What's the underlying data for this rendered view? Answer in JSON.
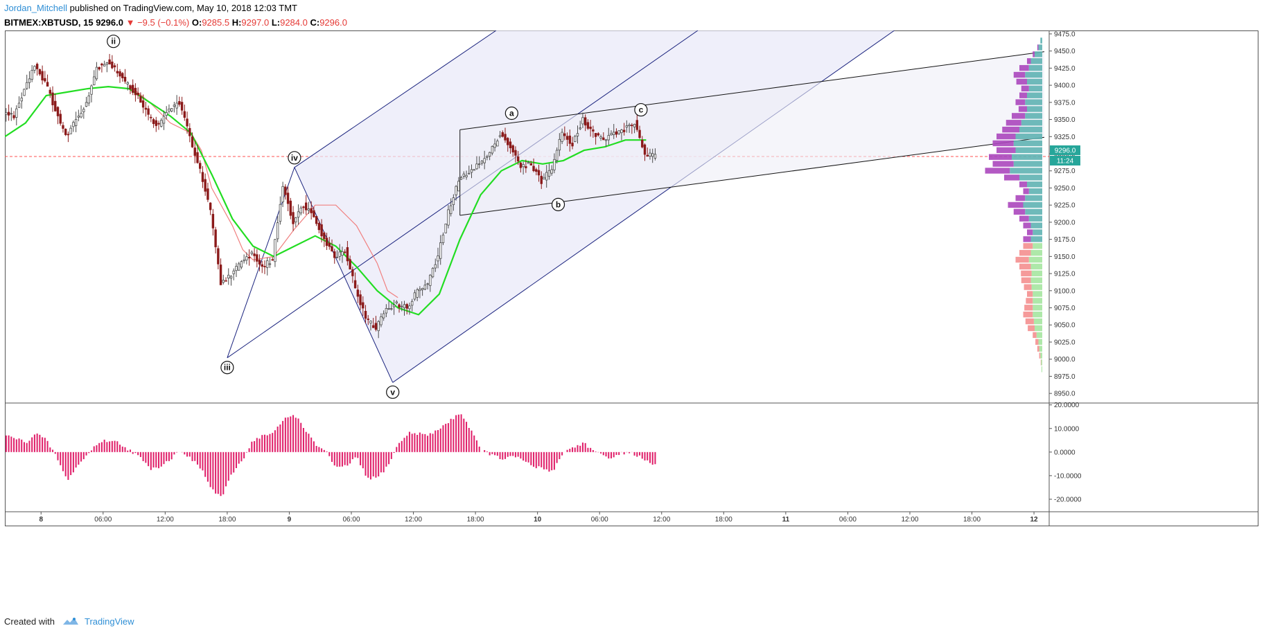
{
  "header": {
    "author": "Jordan_Mitchell",
    "published_text": "published on TradingView.com, May 10, 2018 12:03 TMT",
    "symbol": "BITMEX:XBTUSD, 15",
    "last": "9296.0",
    "change": "▼ −9.5 (−0.1%)",
    "o_label": "O:",
    "o_value": "9285.5",
    "h_label": "H:",
    "h_value": "9297.0",
    "l_label": "L:",
    "l_value": "9284.0",
    "c_label": "C:",
    "c_value": "9296.0"
  },
  "footer": {
    "created_with": "Created with",
    "brand": "TradingView"
  },
  "colors": {
    "bull": "#4a4a4a",
    "bear": "#8b1a1a",
    "ema_fast": "#22dd22",
    "ema_slow": "#f08080",
    "channel": "#1a237e",
    "channel_fill": "#e8e8f8",
    "osc": "#e0206a",
    "price_line": "#ff5252",
    "price_tag": "#26a69a"
  },
  "chart_data": {
    "type": "candlestick",
    "interval": "15",
    "price_axis": {
      "min": 8937,
      "max": 9480,
      "ticks": [
        "9475.0",
        "9450.0",
        "9425.0",
        "9400.0",
        "9375.0",
        "9350.0",
        "9325.0",
        "9300.0",
        "9275.0",
        "9250.0",
        "9225.0",
        "9200.0",
        "9175.0",
        "9150.0",
        "9125.0",
        "9100.0",
        "9075.0",
        "9050.0",
        "9025.0",
        "9000.0",
        "8975.0",
        "8950.0"
      ]
    },
    "last_price": {
      "value": 9296,
      "label": "9296.0",
      "countdown": "11:24"
    },
    "time_axis": {
      "ticks": [
        {
          "label": "8",
          "t": 3.5
        },
        {
          "label": "06:00",
          "t": 9.5
        },
        {
          "label": "12:00",
          "t": 15.5
        },
        {
          "label": "18:00",
          "t": 21.5
        },
        {
          "label": "9",
          "t": 27.5
        },
        {
          "label": "06:00",
          "t": 33.5
        },
        {
          "label": "12:00",
          "t": 39.5
        },
        {
          "label": "18:00",
          "t": 45.5
        },
        {
          "label": "10",
          "t": 51.5
        },
        {
          "label": "06:00",
          "t": 57.5
        },
        {
          "label": "12:00",
          "t": 63.5
        },
        {
          "label": "18:00",
          "t": 69.5
        },
        {
          "label": "11",
          "t": 75.5
        },
        {
          "label": "06:00",
          "t": 81.5
        },
        {
          "label": "12:00",
          "t": 87.5
        },
        {
          "label": "18:00",
          "t": 93.5
        },
        {
          "label": "12",
          "t": 99.5
        }
      ],
      "max_hours": 100.5
    },
    "price_path": [
      [
        0,
        9360
      ],
      [
        1,
        9355
      ],
      [
        2,
        9395
      ],
      [
        3,
        9430
      ],
      [
        4,
        9405
      ],
      [
        5,
        9365
      ],
      [
        6,
        9325
      ],
      [
        7,
        9350
      ],
      [
        8,
        9375
      ],
      [
        9,
        9425
      ],
      [
        10,
        9435
      ],
      [
        11,
        9420
      ],
      [
        12,
        9400
      ],
      [
        13,
        9385
      ],
      [
        14,
        9355
      ],
      [
        15,
        9340
      ],
      [
        16,
        9365
      ],
      [
        17,
        9375
      ],
      [
        18,
        9325
      ],
      [
        19,
        9275
      ],
      [
        20,
        9215
      ],
      [
        21,
        9110
      ],
      [
        22,
        9125
      ],
      [
        23,
        9140
      ],
      [
        24,
        9155
      ],
      [
        25,
        9135
      ],
      [
        26,
        9145
      ],
      [
        27,
        9255
      ],
      [
        28,
        9200
      ],
      [
        29,
        9225
      ],
      [
        30,
        9210
      ],
      [
        31,
        9175
      ],
      [
        32,
        9150
      ],
      [
        33,
        9160
      ],
      [
        34,
        9105
      ],
      [
        35,
        9060
      ],
      [
        36,
        9045
      ],
      [
        37,
        9075
      ],
      [
        38,
        9080
      ],
      [
        39,
        9075
      ],
      [
        40,
        9100
      ],
      [
        41,
        9110
      ],
      [
        42,
        9150
      ],
      [
        43,
        9215
      ],
      [
        44,
        9260
      ],
      [
        45,
        9275
      ],
      [
        46,
        9285
      ],
      [
        47,
        9300
      ],
      [
        48,
        9330
      ],
      [
        49,
        9310
      ],
      [
        50,
        9280
      ],
      [
        51,
        9285
      ],
      [
        52,
        9260
      ],
      [
        53,
        9280
      ],
      [
        54,
        9330
      ],
      [
        55,
        9315
      ],
      [
        56,
        9350
      ],
      [
        57,
        9330
      ],
      [
        58,
        9320
      ],
      [
        59,
        9330
      ],
      [
        60,
        9335
      ],
      [
        61,
        9345
      ],
      [
        62,
        9300
      ],
      [
        63,
        9296
      ]
    ],
    "ema_fast_path": [
      [
        0,
        9325
      ],
      [
        2,
        9345
      ],
      [
        4,
        9385
      ],
      [
        6,
        9390
      ],
      [
        8,
        9395
      ],
      [
        10,
        9398
      ],
      [
        12,
        9395
      ],
      [
        14,
        9375
      ],
      [
        16,
        9355
      ],
      [
        18,
        9330
      ],
      [
        20,
        9270
      ],
      [
        22,
        9205
      ],
      [
        24,
        9165
      ],
      [
        26,
        9150
      ],
      [
        28,
        9165
      ],
      [
        30,
        9180
      ],
      [
        32,
        9165
      ],
      [
        34,
        9135
      ],
      [
        36,
        9100
      ],
      [
        38,
        9075
      ],
      [
        40,
        9065
      ],
      [
        42,
        9095
      ],
      [
        44,
        9175
      ],
      [
        46,
        9240
      ],
      [
        48,
        9275
      ],
      [
        50,
        9290
      ],
      [
        52,
        9285
      ],
      [
        54,
        9290
      ],
      [
        56,
        9305
      ],
      [
        58,
        9310
      ],
      [
        60,
        9320
      ],
      [
        62,
        9320
      ]
    ],
    "ema_slow_path": [
      [
        12,
        9400
      ],
      [
        14,
        9375
      ],
      [
        16,
        9345
      ],
      [
        18,
        9330
      ],
      [
        19,
        9305
      ],
      [
        20,
        9250
      ],
      [
        22,
        9195
      ],
      [
        23,
        9160
      ],
      [
        24,
        9145
      ],
      [
        26,
        9150
      ],
      [
        28,
        9190
      ],
      [
        30,
        9225
      ],
      [
        32,
        9225
      ],
      [
        34,
        9195
      ],
      [
        36,
        9140
      ],
      [
        37,
        9100
      ],
      [
        38,
        9090
      ]
    ],
    "wave_labels": [
      {
        "label": "ii",
        "t": 10.5,
        "price": 9450,
        "pos": "above"
      },
      {
        "label": "iii",
        "t": 21.5,
        "price": 9002,
        "pos": "below"
      },
      {
        "label": "iv",
        "t": 28,
        "price": 9280,
        "pos": "above"
      },
      {
        "label": "v",
        "t": 37.5,
        "price": 8966,
        "pos": "below"
      },
      {
        "label": "a",
        "t": 49,
        "price": 9345,
        "pos": "above"
      },
      {
        "label": "b",
        "t": 53.5,
        "price": 9240,
        "pos": "below"
      },
      {
        "label": "c",
        "t": 61.5,
        "price": 9350,
        "pos": "above"
      }
    ],
    "pitchfork": {
      "pivots": [
        {
          "t": 21.5,
          "price": 9002
        },
        {
          "t": 28,
          "price": 9280
        },
        {
          "t": 37.5,
          "price": 8966
        }
      ],
      "upper": [
        {
          "t": 28,
          "price": 9280
        },
        {
          "t": 47.5,
          "price": 9480
        }
      ],
      "median": [
        {
          "t": 21.5,
          "price": 9002
        },
        {
          "t": 67,
          "price": 9480
        }
      ],
      "lower": [
        {
          "t": 37.5,
          "price": 8966
        },
        {
          "t": 86,
          "price": 9480
        }
      ]
    },
    "abc_channel": {
      "upper": [
        {
          "t": 44,
          "price": 9335
        },
        {
          "t": 100.5,
          "price": 9449
        }
      ],
      "lower": [
        {
          "t": 44,
          "price": 9210
        },
        {
          "t": 100.5,
          "price": 9324
        }
      ],
      "vertical": [
        {
          "t": 44,
          "price": 9210
        },
        {
          "t": 44,
          "price": 9335
        }
      ]
    },
    "oscillator": {
      "min": -25,
      "max": 20.5,
      "ticks": [
        "20.0000",
        "10.0000",
        "0.0000",
        "-10.0000",
        "-20.0000"
      ],
      "path": [
        [
          0,
          7
        ],
        [
          1,
          6
        ],
        [
          2,
          4
        ],
        [
          3,
          8
        ],
        [
          4,
          5
        ],
        [
          5,
          -2
        ],
        [
          6,
          -12
        ],
        [
          7,
          -6
        ],
        [
          8,
          -1
        ],
        [
          9,
          4
        ],
        [
          10,
          5
        ],
        [
          11,
          4
        ],
        [
          12,
          1
        ],
        [
          13,
          -2
        ],
        [
          14,
          -7
        ],
        [
          15,
          -6
        ],
        [
          16,
          -3
        ],
        [
          17,
          1
        ],
        [
          18,
          -3
        ],
        [
          19,
          -7
        ],
        [
          20,
          -16
        ],
        [
          21,
          -19
        ],
        [
          22,
          -9
        ],
        [
          23,
          -3
        ],
        [
          24,
          5
        ],
        [
          25,
          7
        ],
        [
          26,
          8
        ],
        [
          27,
          14
        ],
        [
          28,
          16
        ],
        [
          29,
          10
        ],
        [
          30,
          3
        ],
        [
          31,
          1
        ],
        [
          32,
          -7
        ],
        [
          33,
          -6
        ],
        [
          34,
          -2
        ],
        [
          35,
          -11
        ],
        [
          36,
          -11
        ],
        [
          37,
          -6
        ],
        [
          38,
          3
        ],
        [
          39,
          8
        ],
        [
          40,
          8
        ],
        [
          41,
          7
        ],
        [
          42,
          10
        ],
        [
          43,
          13
        ],
        [
          44,
          17
        ],
        [
          45,
          10
        ],
        [
          46,
          1
        ],
        [
          47,
          -1
        ],
        [
          48,
          -3
        ],
        [
          49,
          -2
        ],
        [
          50,
          -3
        ],
        [
          51,
          -6
        ],
        [
          52,
          -7
        ],
        [
          53,
          -8
        ],
        [
          54,
          0
        ],
        [
          55,
          2
        ],
        [
          56,
          4
        ],
        [
          57,
          0
        ],
        [
          58,
          -2
        ],
        [
          59,
          -2
        ],
        [
          60,
          0
        ],
        [
          61,
          -1
        ],
        [
          62,
          -4
        ],
        [
          63,
          -6
        ]
      ]
    },
    "volume_profile": [
      [
        9465,
        0.0,
        0.05
      ],
      [
        9455,
        0.03,
        0.1
      ],
      [
        9445,
        0.05,
        0.2
      ],
      [
        9435,
        0.1,
        0.3
      ],
      [
        9425,
        0.25,
        0.35
      ],
      [
        9415,
        0.3,
        0.45
      ],
      [
        9405,
        0.28,
        0.4
      ],
      [
        9395,
        0.2,
        0.35
      ],
      [
        9385,
        0.2,
        0.4
      ],
      [
        9375,
        0.25,
        0.45
      ],
      [
        9365,
        0.22,
        0.4
      ],
      [
        9355,
        0.35,
        0.45
      ],
      [
        9345,
        0.4,
        0.55
      ],
      [
        9335,
        0.45,
        0.6
      ],
      [
        9325,
        0.5,
        0.7
      ],
      [
        9315,
        0.55,
        0.75
      ],
      [
        9305,
        0.5,
        0.7
      ],
      [
        9295,
        0.6,
        0.8
      ],
      [
        9285,
        0.55,
        0.75
      ],
      [
        9275,
        0.65,
        0.85
      ],
      [
        9265,
        0.4,
        0.6
      ],
      [
        9255,
        0.2,
        0.4
      ],
      [
        9245,
        0.15,
        0.35
      ],
      [
        9235,
        0.25,
        0.45
      ],
      [
        9225,
        0.4,
        0.5
      ],
      [
        9215,
        0.3,
        0.45
      ],
      [
        9205,
        0.25,
        0.35
      ],
      [
        9195,
        0.2,
        0.3
      ],
      [
        9185,
        0.15,
        0.25
      ],
      [
        9175,
        0.2,
        0.3
      ],
      [
        9165,
        0.25,
        0.25
      ],
      [
        9155,
        0.3,
        0.3
      ],
      [
        9145,
        0.35,
        0.35
      ],
      [
        9135,
        0.3,
        0.3
      ],
      [
        9125,
        0.28,
        0.28
      ],
      [
        9115,
        0.25,
        0.3
      ],
      [
        9105,
        0.2,
        0.28
      ],
      [
        9095,
        0.15,
        0.25
      ],
      [
        9085,
        0.18,
        0.25
      ],
      [
        9075,
        0.22,
        0.25
      ],
      [
        9065,
        0.25,
        0.25
      ],
      [
        9055,
        0.22,
        0.22
      ],
      [
        9045,
        0.18,
        0.2
      ],
      [
        9035,
        0.1,
        0.15
      ],
      [
        9025,
        0.08,
        0.1
      ],
      [
        9015,
        0.05,
        0.08
      ],
      [
        9005,
        0.03,
        0.05
      ],
      [
        8995,
        0.01,
        0.03
      ],
      [
        8985,
        0.0,
        0.02
      ]
    ]
  }
}
